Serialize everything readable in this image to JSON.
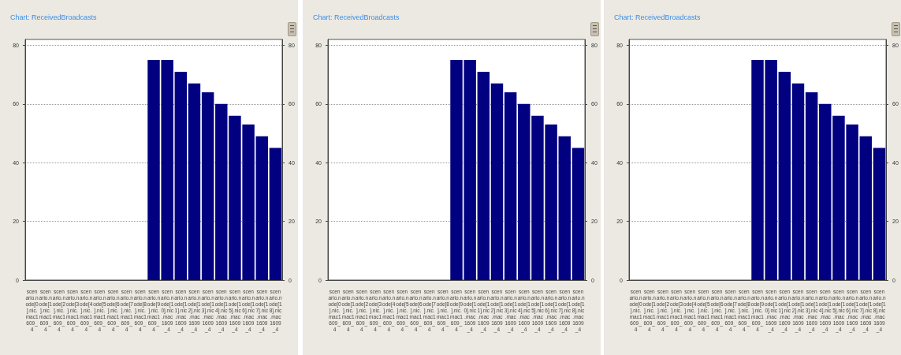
{
  "chart_data": [
    {
      "type": "bar",
      "title": "Chart: ReceivedBroadcasts",
      "categories": [
        "scenario.node[0].nic.mac1609_4",
        "scenario.node[1].nic.mac1609_4",
        "scenario.node[2].nic.mac1609_4",
        "scenario.node[3].nic.mac1609_4",
        "scenario.node[4].nic.mac1609_4",
        "scenario.node[5].nic.mac1609_4",
        "scenario.node[6].nic.mac1609_4",
        "scenario.node[7].nic.mac1609_4",
        "scenario.node[8].nic.mac1609_4",
        "scenario.node[9].nic.mac1609_4",
        "scenario.node[10].nic.mac1609_4",
        "scenario.node[11].nic.mac1609_4",
        "scenario.node[12].nic.mac1609_4",
        "scenario.node[13].nic.mac1609_4",
        "scenario.node[14].nic.mac1609_4",
        "scenario.node[15].nic.mac1609_4",
        "scenario.node[16].nic.mac1609_4",
        "scenario.node[17].nic.mac1609_4",
        "scenario.node[18].nic.mac1609_4"
      ],
      "values": [
        0,
        0,
        0,
        0,
        0,
        0,
        0,
        0,
        0,
        75,
        75,
        71,
        67,
        64,
        60,
        56,
        53,
        49,
        45
      ],
      "color": "#000080",
      "ylim": [
        0,
        82
      ],
      "yticks": [
        0,
        20,
        40,
        60,
        80
      ],
      "y2lim": [
        0,
        82
      ],
      "y2ticks": [
        0,
        20,
        40,
        60,
        80
      ],
      "grid": "y"
    },
    {
      "type": "bar",
      "title": "Chart: ReceivedBroadcasts",
      "categories": [
        "scenario.node[0].nic.mac1609_4",
        "scenario.node[1].nic.mac1609_4",
        "scenario.node[2].nic.mac1609_4",
        "scenario.node[3].nic.mac1609_4",
        "scenario.node[4].nic.mac1609_4",
        "scenario.node[5].nic.mac1609_4",
        "scenario.node[6].nic.mac1609_4",
        "scenario.node[7].nic.mac1609_4",
        "scenario.node[8].nic.mac1609_4",
        "scenario.node[9].nic.mac1609_4",
        "scenario.node[10].nic.mac1609_4",
        "scenario.node[11].nic.mac1609_4",
        "scenario.node[12].nic.mac1609_4",
        "scenario.node[13].nic.mac1609_4",
        "scenario.node[14].nic.mac1609_4",
        "scenario.node[15].nic.mac1609_4",
        "scenario.node[16].nic.mac1609_4",
        "scenario.node[17].nic.mac1609_4",
        "scenario.node[18].nic.mac1609_4"
      ],
      "values": [
        0,
        0,
        0,
        0,
        0,
        0,
        0,
        0,
        0,
        75,
        75,
        71,
        67,
        64,
        60,
        56,
        53,
        49,
        45
      ],
      "color": "#000080",
      "ylim": [
        0,
        82
      ],
      "yticks": [
        0,
        20,
        40,
        60,
        80
      ],
      "y2lim": [
        0,
        82
      ],
      "y2ticks": [
        0,
        20,
        40,
        60,
        80
      ],
      "grid": "y"
    },
    {
      "type": "bar",
      "title": "Chart: ReceivedBroadcasts",
      "categories": [
        "scenario.node[0].nic.mac1609_4",
        "scenario.node[1].nic.mac1609_4",
        "scenario.node[2].nic.mac1609_4",
        "scenario.node[3].nic.mac1609_4",
        "scenario.node[4].nic.mac1609_4",
        "scenario.node[5].nic.mac1609_4",
        "scenario.node[6].nic.mac1609_4",
        "scenario.node[7].nic.mac1609_4",
        "scenario.node[8].nic.mac1609_4",
        "scenario.node[9].nic.mac1609_4",
        "scenario.node[10].nic.mac1609_4",
        "scenario.node[11].nic.mac1609_4",
        "scenario.node[12].nic.mac1609_4",
        "scenario.node[13].nic.mac1609_4",
        "scenario.node[14].nic.mac1609_4",
        "scenario.node[15].nic.mac1609_4",
        "scenario.node[16].nic.mac1609_4",
        "scenario.node[17].nic.mac1609_4",
        "scenario.node[18].nic.mac1609_4"
      ],
      "values": [
        0,
        0,
        0,
        0,
        0,
        0,
        0,
        0,
        0,
        75,
        75,
        71,
        67,
        64,
        60,
        56,
        53,
        49,
        45
      ],
      "color": "#000080",
      "ylim": [
        0,
        82
      ],
      "yticks": [
        0,
        20,
        40,
        60,
        80
      ],
      "y2lim": [
        0,
        82
      ],
      "y2ticks": [
        0,
        20,
        40,
        60,
        80
      ],
      "grid": "y"
    }
  ]
}
